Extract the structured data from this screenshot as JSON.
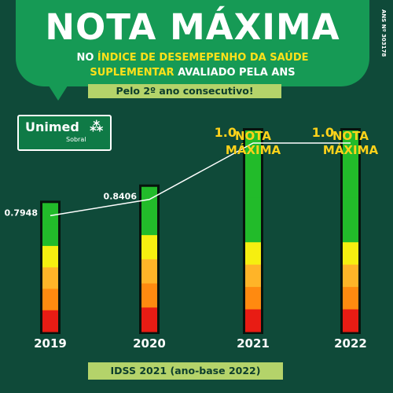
{
  "header": {
    "title": "NOTA MÁXIMA",
    "subtitle_line1_part1": "NO ",
    "subtitle_line1_part2": "ÍNDICE DE DESEMEPENHO DA SAÚDE",
    "subtitle_line2_part1": "SUPLEMENTAR ",
    "subtitle_line2_part2": "AVALIADO PELA ANS",
    "ribbon": "Pelo 2º ano consecutivo!",
    "ans_registration": "ANS Nº 303178"
  },
  "logo": {
    "name": "Unimed",
    "city": "Sobral",
    "mark": "⁂"
  },
  "footer": {
    "caption": "IDSS 2021 (ano-base 2022)"
  },
  "colors": {
    "background": "#0f4a39",
    "banner": "#169a55",
    "highlight": "#ffe11a",
    "ribbon": "#b4d36a",
    "scale": [
      "#22bb2a",
      "#f6ef10",
      "#ffb428",
      "#ff8a10",
      "#e81c14"
    ]
  },
  "chart_data": {
    "type": "line",
    "categories": [
      "2019",
      "2020",
      "2021",
      "2022"
    ],
    "values": [
      0.7948,
      0.8406,
      1.0,
      1.0
    ],
    "value_labels": [
      "0.7948",
      "0.8406",
      "1.0",
      "1.0"
    ],
    "annotations": [
      {
        "category": "2021",
        "text": [
          "NOTA",
          "MÁXIMA"
        ]
      },
      {
        "category": "2022",
        "text": [
          "NOTA",
          "MÁXIMA"
        ]
      }
    ],
    "title": "",
    "xlabel": "",
    "ylabel": "",
    "grid": false,
    "legend": false
  }
}
